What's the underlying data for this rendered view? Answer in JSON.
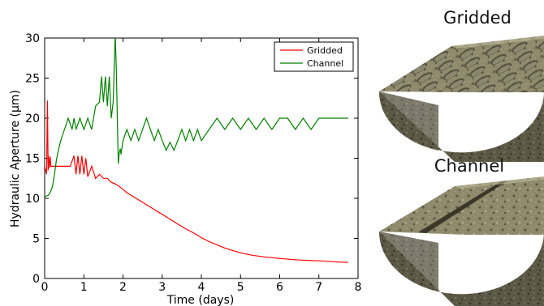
{
  "chart_data": {
    "type": "line",
    "xlabel": "Time (days)",
    "ylabel": "Hydraulic Aperture (μm)",
    "xlim": [
      0,
      8
    ],
    "ylim": [
      0,
      30
    ],
    "xticks": [
      "0",
      "1",
      "2",
      "3",
      "4",
      "5",
      "6",
      "7",
      "8"
    ],
    "yticks": [
      "0",
      "5",
      "10",
      "15",
      "20",
      "25",
      "30"
    ],
    "grid": false,
    "legend_position": "top-right",
    "series": [
      {
        "name": "Gridded",
        "color": "#ff0000",
        "x": [
          0.0,
          0.05,
          0.07,
          0.09,
          0.1,
          0.12,
          0.14,
          0.16,
          0.2,
          0.3,
          0.5,
          0.65,
          0.75,
          0.8,
          0.85,
          0.9,
          0.95,
          1.0,
          1.05,
          1.1,
          1.2,
          1.3,
          1.4,
          1.5,
          1.6,
          1.7,
          1.8,
          1.9,
          2.0,
          2.1,
          2.2,
          2.3,
          2.4,
          2.5,
          2.6,
          2.7,
          2.8,
          2.9,
          3.0,
          3.2,
          3.4,
          3.6,
          3.8,
          4.0,
          4.2,
          4.4,
          4.6,
          4.8,
          5.0,
          5.3,
          5.6,
          6.0,
          6.5,
          7.0,
          7.5,
          7.75
        ],
        "y": [
          14.0,
          13.0,
          22.2,
          13.5,
          15.3,
          13.8,
          15.2,
          14.0,
          14.0,
          14.0,
          14.0,
          14.0,
          15.3,
          13.0,
          15.3,
          13.0,
          15.3,
          13.0,
          15.0,
          12.7,
          14.0,
          12.5,
          13.0,
          12.5,
          12.5,
          12.0,
          11.8,
          11.5,
          11.1,
          10.7,
          10.4,
          10.1,
          9.8,
          9.5,
          9.2,
          8.9,
          8.6,
          8.3,
          8.0,
          7.4,
          6.8,
          6.2,
          5.7,
          5.1,
          4.6,
          4.2,
          3.8,
          3.5,
          3.2,
          2.9,
          2.7,
          2.5,
          2.3,
          2.2,
          2.05,
          2.0
        ]
      },
      {
        "name": "Channel",
        "color": "#008000",
        "x": [
          0.0,
          0.1,
          0.15,
          0.2,
          0.25,
          0.3,
          0.35,
          0.4,
          0.45,
          0.5,
          0.55,
          0.6,
          0.7,
          0.75,
          0.8,
          0.9,
          1.0,
          1.1,
          1.2,
          1.3,
          1.4,
          1.45,
          1.5,
          1.55,
          1.6,
          1.65,
          1.7,
          1.75,
          1.8,
          1.83,
          1.86,
          1.88,
          1.9,
          1.93,
          1.95,
          2.0,
          2.1,
          2.2,
          2.3,
          2.4,
          2.5,
          2.6,
          2.7,
          2.8,
          2.9,
          3.0,
          3.1,
          3.2,
          3.3,
          3.4,
          3.5,
          3.6,
          3.7,
          3.8,
          3.9,
          4.0,
          4.2,
          4.4,
          4.6,
          4.8,
          5.0,
          5.2,
          5.4,
          5.6,
          5.8,
          6.0,
          6.2,
          6.4,
          6.6,
          6.8,
          7.0,
          7.2,
          7.4,
          7.6,
          7.75
        ],
        "y": [
          10.2,
          10.4,
          10.8,
          11.5,
          13.0,
          14.8,
          16.0,
          17.0,
          17.8,
          18.5,
          19.2,
          20.0,
          18.6,
          20.0,
          18.6,
          20.0,
          18.6,
          20.0,
          18.6,
          21.5,
          22.0,
          25.2,
          22.0,
          25.2,
          21.5,
          25.2,
          20.0,
          22.0,
          30.5,
          26.0,
          19.0,
          14.3,
          15.5,
          16.2,
          15.5,
          17.2,
          18.6,
          17.2,
          18.6,
          17.2,
          18.6,
          20.0,
          18.6,
          17.2,
          18.6,
          17.2,
          16.0,
          17.0,
          16.0,
          17.2,
          18.6,
          17.2,
          18.6,
          17.2,
          18.6,
          17.2,
          18.6,
          20.0,
          18.6,
          20.0,
          18.6,
          20.0,
          18.6,
          20.0,
          18.6,
          20.0,
          20.0,
          18.6,
          20.0,
          18.6,
          20.0,
          20.0,
          20.0,
          20.0,
          20.0
        ]
      }
    ]
  },
  "panels": {
    "gridded_title": "Gridded",
    "channel_title": "Channel"
  }
}
